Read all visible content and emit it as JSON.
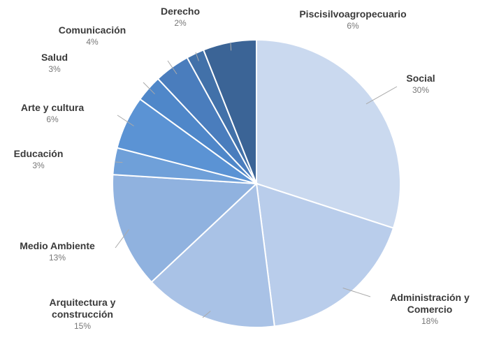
{
  "chart_data": {
    "type": "pie",
    "categories": [
      "Social",
      "Administración y Comercio",
      "Arquitectura y construcción",
      "Medio Ambiente",
      "Educación",
      "Arte y cultura",
      "Salud",
      "Comunicación",
      "Derecho",
      "Piscisilvoagropecuario"
    ],
    "values": [
      30,
      18,
      15,
      13,
      3,
      6,
      3,
      4,
      2,
      6
    ],
    "value_labels": [
      "30%",
      "18%",
      "15%",
      "13%",
      "3%",
      "6%",
      "3%",
      "4%",
      "2%",
      "6%"
    ],
    "colors": [
      "#cad9ef",
      "#b9cdeb",
      "#a9c2e6",
      "#90b2df",
      "#6fa0d9",
      "#5b93d4",
      "#4f87c9",
      "#4a7dbd",
      "#4271a9",
      "#3b6496"
    ]
  }
}
